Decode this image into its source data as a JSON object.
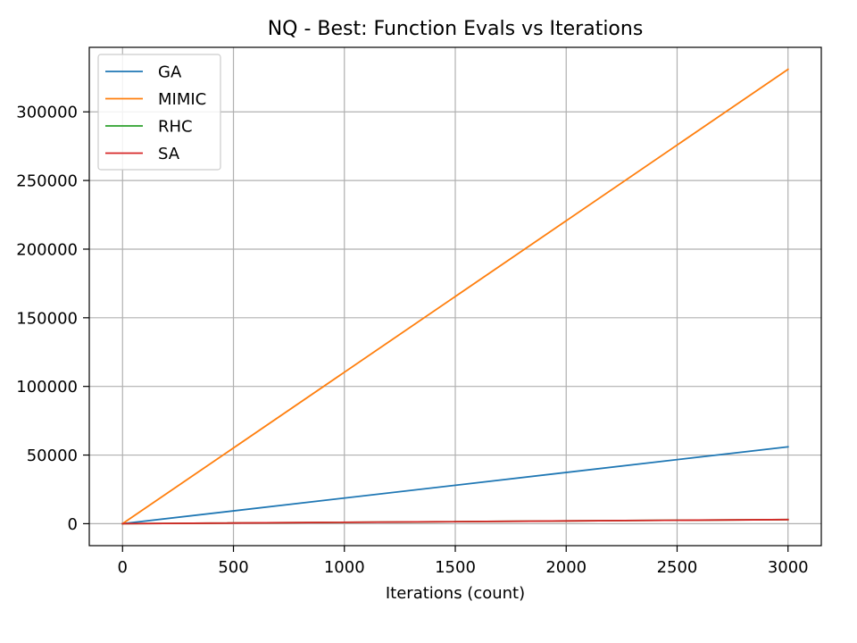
{
  "chart_data": {
    "type": "line",
    "title": "NQ - Best: Function Evals vs Iterations",
    "xlabel": "Iterations (count)",
    "ylabel": "",
    "xlim": [
      -150,
      3150
    ],
    "ylim": [
      -16000,
      347000
    ],
    "xticks": [
      0,
      500,
      1000,
      1500,
      2000,
      2500,
      3000
    ],
    "yticks": [
      0,
      50000,
      100000,
      150000,
      200000,
      250000,
      300000
    ],
    "grid": true,
    "legend_position": "top-left",
    "series": [
      {
        "name": "GA",
        "color": "#1f77b4",
        "x": [
          0,
          3000
        ],
        "y": [
          0,
          56000
        ]
      },
      {
        "name": "MIMIC",
        "color": "#ff7f0e",
        "x": [
          0,
          3000
        ],
        "y": [
          0,
          331000
        ]
      },
      {
        "name": "RHC",
        "color": "#2ca02c",
        "x": [
          0,
          3000
        ],
        "y": [
          0,
          3000
        ]
      },
      {
        "name": "SA",
        "color": "#d62728",
        "x": [
          0,
          3000
        ],
        "y": [
          0,
          3000
        ]
      }
    ]
  }
}
